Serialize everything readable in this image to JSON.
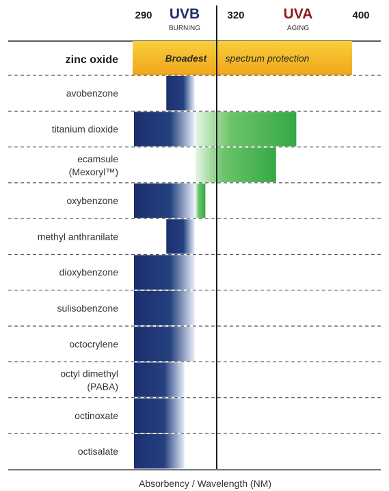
{
  "chart_data": {
    "type": "bar",
    "title": "",
    "xlabel": "Absorbency / Wavelength (NM)",
    "ylabel": "",
    "xlim": [
      290,
      400
    ],
    "ticks": [
      "290",
      "320",
      "400"
    ],
    "regions": {
      "uvb": {
        "name": "UVB",
        "sub": "BURNING",
        "range": [
          290,
          320
        ],
        "color": "#1f2f6b"
      },
      "uva": {
        "name": "UVA",
        "sub": "AGING",
        "range": [
          320,
          400
        ],
        "color": "#8b1c1c"
      }
    },
    "colors": {
      "uvb_bar": "#1c2f6e",
      "uva_bar": "#3fae4a",
      "zinc_band_top": "#f6c633",
      "zinc_band_bottom": "#f2a81e"
    },
    "zinc_oxide": {
      "label": "zinc oxide",
      "range": [
        290,
        400
      ],
      "text_left": "Broadest",
      "text_right": "spectrum protection"
    },
    "categories": [
      "avobenzone",
      "titanium dioxide",
      "ecamsule\n(Mexoryl™)",
      "oxybenzone",
      "methyl anthranilate",
      "dioxybenzone",
      "sulisobenzone",
      "octocrylene",
      "octyl dimethyl\n(PABA)",
      "octinoxate",
      "octisalate"
    ],
    "series": [
      {
        "name": "UVB",
        "ranges": [
          [
            306,
            320
          ],
          [
            290,
            320
          ],
          null,
          [
            290,
            320
          ],
          [
            306,
            320
          ],
          [
            290,
            320
          ],
          [
            290,
            320
          ],
          [
            290,
            320
          ],
          [
            290,
            315
          ],
          [
            290,
            315
          ],
          [
            290,
            315
          ]
        ]
      },
      {
        "name": "UVA",
        "ranges": [
          null,
          [
            320,
            370
          ],
          [
            320,
            360
          ],
          [
            320,
            325
          ],
          null,
          null,
          null,
          null,
          null,
          null,
          null
        ]
      }
    ]
  }
}
